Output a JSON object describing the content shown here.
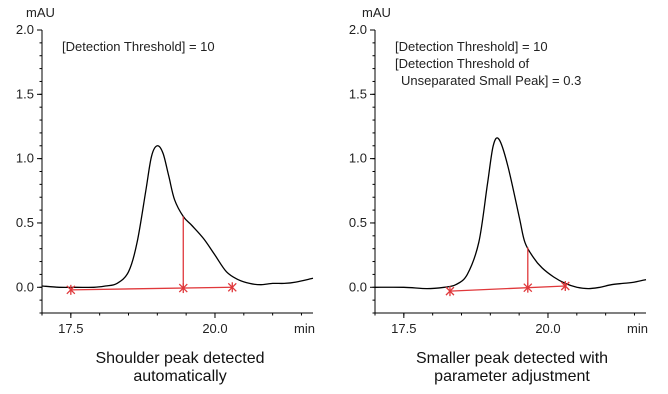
{
  "chart_data": [
    {
      "type": "line",
      "y_unit": "mAU",
      "x_unit": "min",
      "xlim": [
        17.0,
        21.7
      ],
      "ylim": [
        -0.2,
        2.0
      ],
      "x_ticks": [
        17.5,
        20.0
      ],
      "x_tick_labels": [
        "17.5",
        "20.0"
      ],
      "y_ticks": [
        0.0,
        0.5,
        1.0,
        1.5,
        2.0
      ],
      "y_tick_labels": [
        "0.0",
        "0.5",
        "1.0",
        "1.5",
        "2.0"
      ],
      "annotations": [
        "[Detection Threshold] = 10"
      ],
      "caption": [
        "Shoulder peak detected",
        "automatically"
      ],
      "series": [
        {
          "x": [
            17.0,
            17.3,
            17.6,
            17.9,
            18.1,
            18.3,
            18.5,
            18.65,
            18.8,
            18.9,
            19.0,
            19.1,
            19.2,
            19.3,
            19.45,
            19.6,
            19.8,
            20.0,
            20.2,
            20.4,
            20.6,
            20.8,
            21.0,
            21.2,
            21.4,
            21.7
          ],
          "y": [
            0.01,
            0.0,
            0.0,
            0.0,
            0.01,
            0.03,
            0.12,
            0.35,
            0.75,
            1.02,
            1.1,
            1.04,
            0.86,
            0.68,
            0.55,
            0.48,
            0.38,
            0.25,
            0.12,
            0.06,
            0.03,
            0.02,
            0.03,
            0.03,
            0.04,
            0.07
          ]
        }
      ],
      "baseline": {
        "x": [
          17.5,
          20.3
        ],
        "y": [
          -0.02,
          0.0
        ]
      },
      "markers_x": [
        17.5,
        19.45,
        20.3
      ],
      "drop_line_x": 19.45
    },
    {
      "type": "line",
      "y_unit": "mAU",
      "x_unit": "min",
      "xlim": [
        17.0,
        21.7
      ],
      "ylim": [
        -0.2,
        2.0
      ],
      "x_ticks": [
        17.5,
        20.0
      ],
      "x_tick_labels": [
        "17.5",
        "20.0"
      ],
      "y_ticks": [
        0.0,
        0.5,
        1.0,
        1.5,
        2.0
      ],
      "y_tick_labels": [
        "0.0",
        "0.5",
        "1.0",
        "1.5",
        "2.0"
      ],
      "annotations": [
        "[Detection Threshold] = 10",
        "[Detection Threshold of",
        "Unseparated Small Peak] = 0.3"
      ],
      "caption": [
        "Smaller peak detected with",
        "parameter adjustment"
      ],
      "series": [
        {
          "x": [
            17.0,
            17.5,
            17.9,
            18.2,
            18.4,
            18.6,
            18.8,
            18.95,
            19.05,
            19.15,
            19.3,
            19.5,
            19.6,
            19.75,
            19.9,
            20.1,
            20.3,
            20.5,
            20.7,
            20.9,
            21.1,
            21.3,
            21.5,
            21.7
          ],
          "y": [
            0.0,
            0.0,
            -0.01,
            0.0,
            0.02,
            0.1,
            0.35,
            0.8,
            1.1,
            1.15,
            0.95,
            0.55,
            0.35,
            0.23,
            0.15,
            0.08,
            0.03,
            0.0,
            -0.01,
            0.0,
            0.02,
            0.03,
            0.04,
            0.06
          ]
        }
      ],
      "baseline": {
        "x": [
          18.3,
          20.3
        ],
        "y": [
          -0.03,
          0.01
        ]
      },
      "markers_x": [
        18.3,
        19.65,
        20.3
      ],
      "drop_line_x": 19.65
    }
  ]
}
